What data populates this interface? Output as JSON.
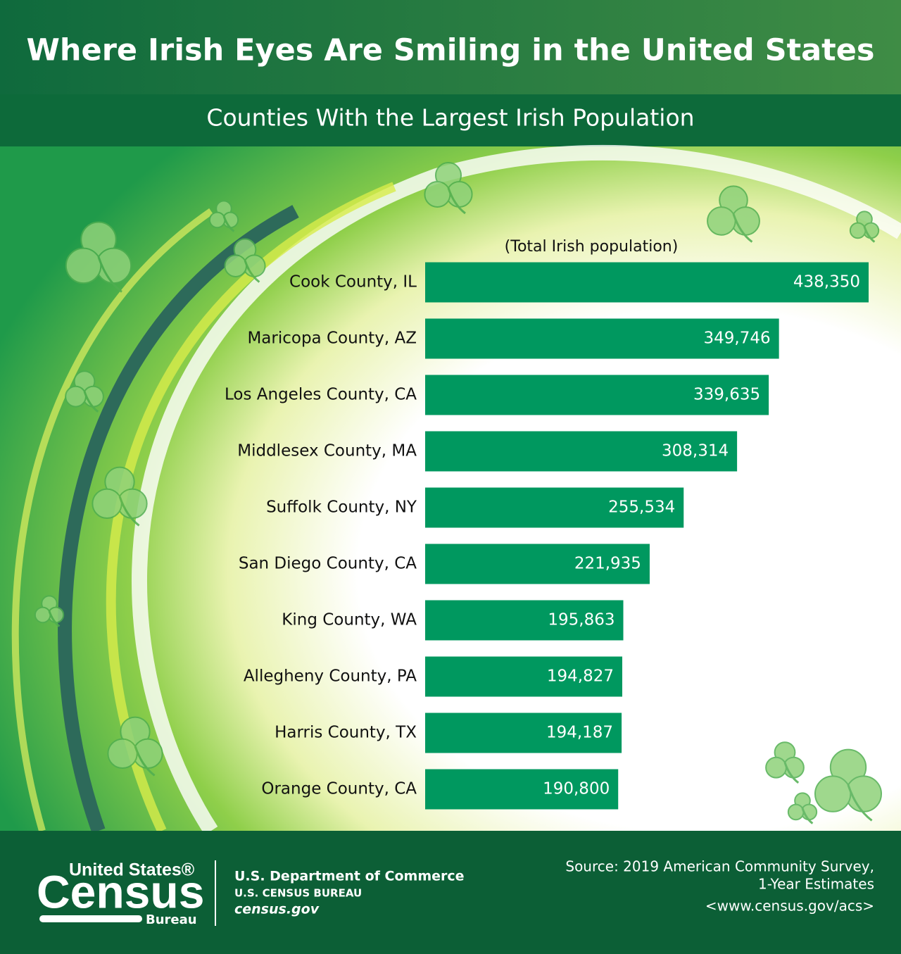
{
  "chart_data": {
    "type": "bar",
    "orientation": "horizontal",
    "title": "Where Irish Eyes Are Smiling in the United States",
    "subtitle": "Counties With the Largest Irish Population",
    "value_axis_label": "(Total Irish population)",
    "categories": [
      "Cook County, IL",
      "Maricopa County, AZ",
      "Los Angeles County, CA",
      "Middlesex County, MA",
      "Suffolk County, NY",
      "San Diego County, CA",
      "King County, WA",
      "Allegheny County, PA",
      "Harris County, TX",
      "Orange County, CA"
    ],
    "values": [
      438350,
      349746,
      339635,
      308314,
      255534,
      221935,
      195863,
      194827,
      194187,
      190800
    ],
    "value_labels": [
      "438,350",
      "349,746",
      "339,635",
      "308,314",
      "255,534",
      "221,935",
      "195,863",
      "194,827",
      "194,187",
      "190,800"
    ],
    "color": "#00985f"
  },
  "footer": {
    "logo_top": "United States®",
    "logo_main": "Census",
    "logo_bottom": "Bureau",
    "department": "U.S. Department of Commerce",
    "bureau": "U.S. CENSUS BUREAU",
    "website": "census.gov",
    "source_line1": "Source: 2019 American Community Survey,",
    "source_line2": "1-Year Estimates",
    "source_url": "<www.census.gov/acs>"
  }
}
